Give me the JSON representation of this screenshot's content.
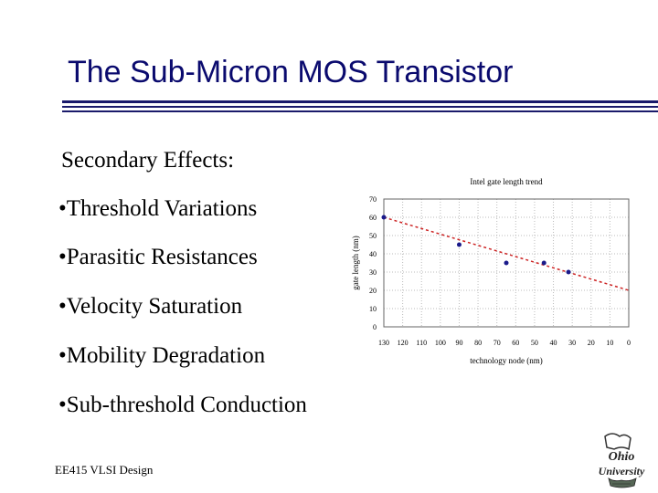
{
  "slide": {
    "title": "The Sub-Micron MOS Transistor",
    "subtitle": "Secondary Effects:",
    "bullets": [
      "•Threshold Variations",
      "•Parasitic Resistances",
      "•Velocity Saturation",
      "•Mobility Degradation",
      "•Sub-threshold Conduction"
    ],
    "footer": "EE415 VLSI Design",
    "logo_text": "Ohio University"
  },
  "colors": {
    "title": "#0a0a6e",
    "rule": "#1a1a6b",
    "trend_line": "#cc2222",
    "points": "#1a1a8a"
  },
  "chart_data": {
    "type": "scatter",
    "title": "Intel gate length trend",
    "xlabel": "technology node (nm)",
    "ylabel": "gate length (nm)",
    "x_ticks": [
      130,
      120,
      110,
      100,
      90,
      80,
      70,
      60,
      50,
      40,
      30,
      20,
      10,
      0
    ],
    "y_ticks": [
      0,
      10,
      20,
      30,
      40,
      50,
      60,
      70
    ],
    "xlim": [
      130,
      0
    ],
    "ylim": [
      0,
      70
    ],
    "x_reversed": true,
    "grid": true,
    "points": [
      {
        "x": 130,
        "y": 60
      },
      {
        "x": 90,
        "y": 45
      },
      {
        "x": 65,
        "y": 35
      },
      {
        "x": 45,
        "y": 35
      },
      {
        "x": 32,
        "y": 30
      }
    ],
    "trend": [
      {
        "x": 130,
        "y": 60
      },
      {
        "x": 0,
        "y": 20
      }
    ]
  }
}
